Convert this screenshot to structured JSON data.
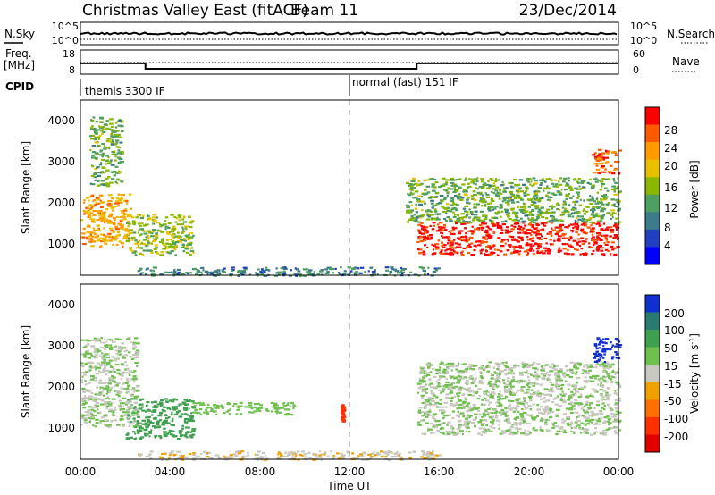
{
  "header": {
    "station": "Christmas Valley East (fitACF)",
    "beam": "Beam 11",
    "date": "23/Dec/2014"
  },
  "sky_panel": {
    "left_label": "N.Sky",
    "left_ticks": [
      "10^5",
      "10^0"
    ],
    "right_ticks": [
      "10^5",
      "10^0"
    ],
    "right_label": "N.Search"
  },
  "freq_panel": {
    "left_label_1": "Freq.",
    "left_label_2": "[MHz]",
    "left_ticks": [
      "18",
      "8"
    ],
    "right_ticks": [
      "60",
      "0"
    ],
    "right_label": "Nave"
  },
  "cpid": {
    "label": "CPID",
    "mode_1": "themis 3300 IF",
    "mode_2": "normal (fast) 151 IF"
  },
  "power_panel": {
    "ylabel": "Slant Range [km]",
    "yticks": [
      "4000",
      "3000",
      "2000",
      "1000"
    ],
    "colorbar_label": "Power [dB]",
    "colorbar_ticks": [
      "28",
      "24",
      "20",
      "16",
      "12",
      "8",
      "4"
    ],
    "colorbar_colors": [
      "#ff0000",
      "#ff5a00",
      "#ff9a00",
      "#e8c000",
      "#8ab800",
      "#4fa060",
      "#3c7a8c",
      "#2040c0",
      "#0000ff"
    ]
  },
  "velocity_panel": {
    "ylabel": "Slant Range [km]",
    "yticks": [
      "4000",
      "3000",
      "2000",
      "1000"
    ],
    "colorbar_label": "Velocity [m s",
    "colorbar_label_sup": "-1",
    "colorbar_label_end": "]",
    "colorbar_ticks": [
      "200",
      "100",
      "50",
      "15",
      "-15",
      "-50",
      "-100",
      "-200"
    ],
    "colorbar_colors": [
      "#1030d0",
      "#2a7a70",
      "#3fa050",
      "#70c050",
      "#c8c8c0",
      "#f0a000",
      "#ff7000",
      "#ff3000",
      "#e00000"
    ]
  },
  "xaxis": {
    "ticks": [
      "00:00",
      "04:00",
      "08:00",
      "12:00",
      "16:00",
      "20:00",
      "00:00"
    ],
    "label": "Time UT"
  },
  "chart_data": {
    "type": "heatmap",
    "title": "Christmas Valley East (fitACF)",
    "xlabel": "Time UT",
    "ylabel": "Slant Range [km]",
    "x_range_hours": [
      0,
      24
    ],
    "y_range_km": [
      180,
      4500
    ],
    "cpid_change_hour": 12.0,
    "frequency_mhz": {
      "hours": [
        0,
        2.9,
        15.0,
        24
      ],
      "values": [
        12.5,
        10.2,
        12.5,
        12.5
      ]
    },
    "power_db_regions": [
      {
        "t": [
          0.0,
          2.2
        ],
        "range_km": [
          900,
          2200
        ],
        "db": 20
      },
      {
        "t": [
          0.4,
          1.8
        ],
        "range_km": [
          2400,
          4100
        ],
        "db": 12
      },
      {
        "t": [
          2.0,
          5.0
        ],
        "range_km": [
          700,
          1700
        ],
        "db": 14
      },
      {
        "t": [
          15.0,
          24.0
        ],
        "range_km": [
          700,
          1500
        ],
        "db": 28
      },
      {
        "t": [
          14.5,
          24.0
        ],
        "range_km": [
          1500,
          2600
        ],
        "db": 12
      },
      {
        "t": [
          22.8,
          24.0
        ],
        "range_km": [
          2700,
          3300
        ],
        "db": 24
      },
      {
        "t": [
          2.5,
          16.0
        ],
        "range_km": [
          180,
          400
        ],
        "db": 8
      }
    ],
    "velocity_ms_regions": [
      {
        "t": [
          2.0,
          5.0
        ],
        "range_km": [
          700,
          1700
        ],
        "v": 60
      },
      {
        "t": [
          5.0,
          9.5
        ],
        "range_km": [
          1300,
          1600
        ],
        "v": 20
      },
      {
        "t": [
          15.0,
          24.0
        ],
        "range_km": [
          800,
          2600
        ],
        "v": 0
      },
      {
        "t": [
          0.0,
          2.5
        ],
        "range_km": [
          1000,
          3200
        ],
        "v": 0
      },
      {
        "t": [
          22.8,
          24.0
        ],
        "range_km": [
          2600,
          3200
        ],
        "v": 200
      },
      {
        "t": [
          2.5,
          16.0
        ],
        "range_km": [
          180,
          400
        ],
        "v": -30
      },
      {
        "t": [
          11.6,
          11.7
        ],
        "range_km": [
          1100,
          1600
        ],
        "v": -200
      }
    ]
  }
}
